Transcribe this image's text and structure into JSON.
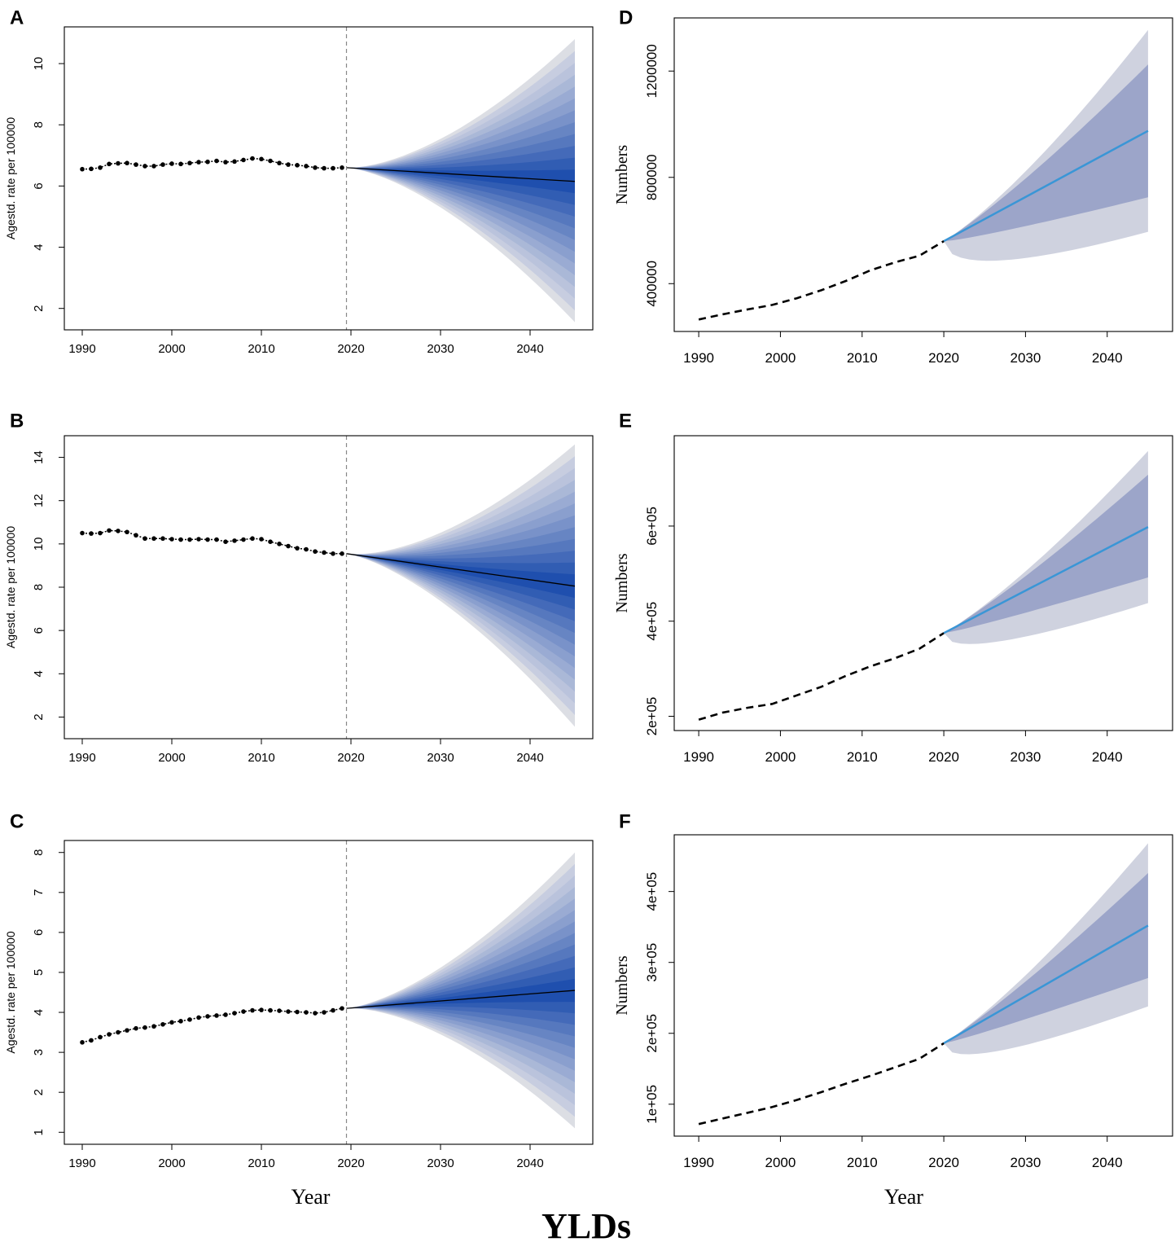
{
  "figure_title": "YLDs",
  "colors": {
    "fan_dark": "#1f4fae",
    "fan_light": "#dcdee4",
    "band_inner": "#9ca5c9",
    "band_outer": "#cfd2df",
    "forecast_line": "#3a96d6",
    "history": "#000000"
  },
  "chart_data": [
    {
      "panel": "A",
      "type": "line",
      "subtype": "fan-forecast",
      "xlabel": "",
      "ylabel": "Agestd. rate per 100000",
      "xlim": [
        1988,
        2047
      ],
      "ylim": [
        1.3,
        11.2
      ],
      "xticks": [
        1990,
        2000,
        2010,
        2020,
        2030,
        2040
      ],
      "yticks": [
        2,
        4,
        6,
        8,
        10
      ],
      "forecast_start": 2019.5,
      "history_x": [
        1990,
        1991,
        1992,
        1993,
        1994,
        1995,
        1996,
        1997,
        1998,
        1999,
        2000,
        2001,
        2002,
        2003,
        2004,
        2005,
        2006,
        2007,
        2008,
        2009,
        2010,
        2011,
        2012,
        2013,
        2014,
        2015,
        2016,
        2017,
        2018,
        2019
      ],
      "history_y": [
        6.55,
        6.56,
        6.6,
        6.72,
        6.74,
        6.75,
        6.7,
        6.65,
        6.65,
        6.7,
        6.73,
        6.72,
        6.75,
        6.78,
        6.79,
        6.82,
        6.78,
        6.8,
        6.85,
        6.9,
        6.88,
        6.82,
        6.75,
        6.7,
        6.68,
        6.65,
        6.6,
        6.58,
        6.58,
        6.6
      ],
      "forecast_x": [
        2019.5,
        2045
      ],
      "forecast_mean": [
        6.6,
        6.15
      ],
      "forecast_upper_outer": 10.8,
      "forecast_lower_outer": 1.55,
      "forecast_upper_inner": 6.55,
      "forecast_lower_inner": 5.8
    },
    {
      "panel": "B",
      "type": "line",
      "subtype": "fan-forecast",
      "xlabel": "",
      "ylabel": "Agestd. rate per 100000",
      "xlim": [
        1988,
        2047
      ],
      "ylim": [
        1.0,
        15.0
      ],
      "xticks": [
        1990,
        2000,
        2010,
        2020,
        2030,
        2040
      ],
      "yticks": [
        2,
        4,
        6,
        8,
        10,
        12,
        14
      ],
      "forecast_start": 2019.5,
      "history_x": [
        1990,
        1991,
        1992,
        1993,
        1994,
        1995,
        1996,
        1997,
        1998,
        1999,
        2000,
        2001,
        2002,
        2003,
        2004,
        2005,
        2006,
        2007,
        2008,
        2009,
        2010,
        2011,
        2012,
        2013,
        2014,
        2015,
        2016,
        2017,
        2018,
        2019
      ],
      "history_y": [
        10.5,
        10.48,
        10.5,
        10.62,
        10.6,
        10.55,
        10.4,
        10.25,
        10.25,
        10.25,
        10.22,
        10.2,
        10.2,
        10.22,
        10.2,
        10.2,
        10.1,
        10.15,
        10.2,
        10.25,
        10.22,
        10.1,
        10.0,
        9.9,
        9.8,
        9.75,
        9.65,
        9.6,
        9.55,
        9.55
      ],
      "forecast_x": [
        2019.5,
        2045
      ],
      "forecast_mean": [
        9.55,
        8.05
      ],
      "forecast_upper_outer": 14.6,
      "forecast_lower_outer": 1.55,
      "forecast_upper_inner": 8.5,
      "forecast_lower_inner": 7.5
    },
    {
      "panel": "C",
      "type": "line",
      "subtype": "fan-forecast",
      "xlabel": "Year",
      "ylabel": "Agestd. rate per 100000",
      "xlim": [
        1988,
        2047
      ],
      "ylim": [
        0.7,
        8.3
      ],
      "xticks": [
        1990,
        2000,
        2010,
        2020,
        2030,
        2040
      ],
      "yticks": [
        1,
        2,
        3,
        4,
        5,
        6,
        7,
        8
      ],
      "forecast_start": 2019.5,
      "history_x": [
        1990,
        1991,
        1992,
        1993,
        1994,
        1995,
        1996,
        1997,
        1998,
        1999,
        2000,
        2001,
        2002,
        2003,
        2004,
        2005,
        2006,
        2007,
        2008,
        2009,
        2010,
        2011,
        2012,
        2013,
        2014,
        2015,
        2016,
        2017,
        2018,
        2019
      ],
      "history_y": [
        3.25,
        3.3,
        3.38,
        3.45,
        3.5,
        3.55,
        3.6,
        3.62,
        3.65,
        3.7,
        3.75,
        3.78,
        3.82,
        3.87,
        3.9,
        3.92,
        3.94,
        3.98,
        4.02,
        4.05,
        4.06,
        4.05,
        4.04,
        4.02,
        4.01,
        4.0,
        3.98,
        4.0,
        4.05,
        4.1
      ],
      "forecast_x": [
        2019.5,
        2045
      ],
      "forecast_mean": [
        4.1,
        4.55
      ],
      "forecast_upper_outer": 8.0,
      "forecast_lower_outer": 1.1,
      "forecast_upper_inner": 5.05,
      "forecast_lower_inner": 4.2
    },
    {
      "panel": "D",
      "type": "line",
      "subtype": "band-forecast",
      "xlabel": "",
      "ylabel": "Numbers",
      "xlim": [
        1987,
        2048
      ],
      "ylim": [
        220000,
        1400000
      ],
      "xticks": [
        1990,
        2000,
        2010,
        2020,
        2030,
        2040
      ],
      "yticks": [
        400000,
        800000,
        1200000
      ],
      "ytick_labels": [
        "400000",
        "800000",
        "1200000"
      ],
      "history_x": [
        1990,
        1993,
        1996,
        1999,
        2002,
        2005,
        2008,
        2011,
        2014,
        2017,
        2020
      ],
      "history_y": [
        265000,
        285000,
        303000,
        320000,
        345000,
        375000,
        410000,
        450000,
        480000,
        505000,
        560000
      ],
      "forecast_x": [
        2020,
        2045
      ],
      "forecast_mean": [
        560000,
        975000
      ],
      "forecast_upper_outer": 1355000,
      "forecast_lower_outer": 595000,
      "forecast_upper_inner": 1225000,
      "forecast_lower_inner": 725000
    },
    {
      "panel": "E",
      "type": "line",
      "subtype": "band-forecast",
      "xlabel": "",
      "ylabel": "Numbers",
      "xlim": [
        1987,
        2048
      ],
      "ylim": [
        170000,
        790000
      ],
      "xticks": [
        1990,
        2000,
        2010,
        2020,
        2030,
        2040
      ],
      "yticks": [
        200000,
        400000,
        600000
      ],
      "ytick_labels": [
        "2e+05",
        "4e+05",
        "6e+05"
      ],
      "history_x": [
        1990,
        1993,
        1996,
        1999,
        2002,
        2005,
        2008,
        2011,
        2014,
        2017,
        2020
      ],
      "history_y": [
        193000,
        208000,
        218000,
        226000,
        244000,
        262000,
        285000,
        305000,
        322000,
        342000,
        375000
      ],
      "forecast_x": [
        2020,
        2045
      ],
      "forecast_mean": [
        375000,
        598000
      ],
      "forecast_upper_outer": 758000,
      "forecast_lower_outer": 438000,
      "forecast_upper_inner": 708000,
      "forecast_lower_inner": 492000
    },
    {
      "panel": "F",
      "type": "line",
      "subtype": "band-forecast",
      "xlabel": "Year",
      "ylabel": "Numbers",
      "xlim": [
        1987,
        2048
      ],
      "ylim": [
        55000,
        480000
      ],
      "xticks": [
        1990,
        2000,
        2010,
        2020,
        2030,
        2040
      ],
      "yticks": [
        100000,
        200000,
        300000,
        400000
      ],
      "ytick_labels": [
        "1e+05",
        "2e+05",
        "3e+05",
        "4e+05"
      ],
      "history_x": [
        1990,
        1993,
        1996,
        1999,
        2002,
        2005,
        2008,
        2011,
        2014,
        2017,
        2020
      ],
      "history_y": [
        72000,
        80000,
        88000,
        96000,
        106000,
        117000,
        129000,
        140000,
        152000,
        164000,
        186000
      ],
      "forecast_x": [
        2020,
        2045
      ],
      "forecast_mean": [
        186000,
        352000
      ],
      "forecast_upper_outer": 468000,
      "forecast_lower_outer": 238000,
      "forecast_upper_inner": 426000,
      "forecast_lower_inner": 278000
    }
  ]
}
